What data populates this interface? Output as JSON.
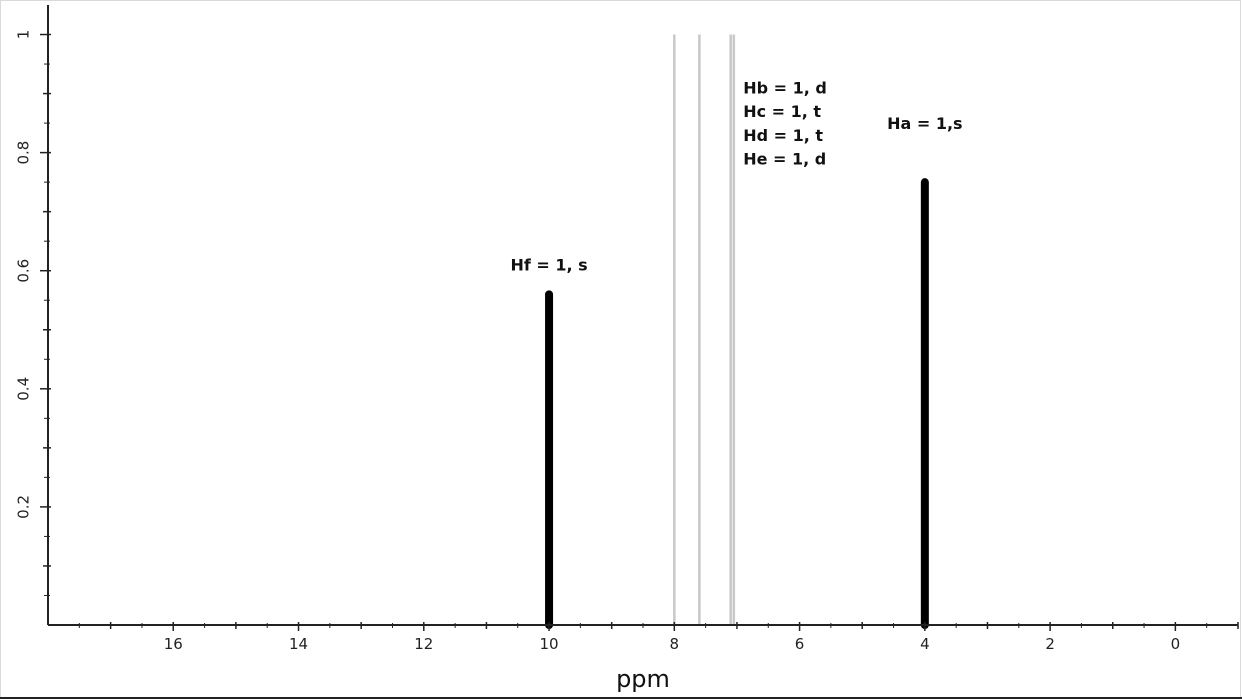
{
  "chart_data": {
    "type": "bar",
    "title": "",
    "xlabel": "ppm",
    "ylabel": "",
    "xlim": [
      18,
      -1
    ],
    "ylim": [
      0,
      1.05
    ],
    "x_reversed": true,
    "grid": false,
    "x_ticks": [
      16,
      14,
      12,
      10,
      8,
      6,
      4,
      2,
      0
    ],
    "y_ticks": [
      0.2,
      0.4,
      0.6,
      0.8,
      1
    ],
    "series": [
      {
        "color": "#000000",
        "points": [
          {
            "x": 10.0,
            "y": 0.56
          },
          {
            "x": 4.0,
            "y": 0.75
          }
        ]
      },
      {
        "color": "#c8c8c8",
        "points": [
          {
            "x": 8.0,
            "y": 1.0
          },
          {
            "x": 7.6,
            "y": 1.0
          },
          {
            "x": 7.1,
            "y": 1.0
          },
          {
            "x": 7.05,
            "y": 1.0
          }
        ]
      }
    ],
    "annotations": [
      {
        "text": "Hf = 1, s",
        "x": 10.0,
        "y": 0.6
      },
      {
        "text": "Hb = 1, d",
        "x": 6.9,
        "y": 0.9
      },
      {
        "text": "Hc = 1, t",
        "x": 6.9,
        "y": 0.86
      },
      {
        "text": "Hd = 1, t",
        "x": 6.9,
        "y": 0.82
      },
      {
        "text": "He = 1, d",
        "x": 6.9,
        "y": 0.78
      },
      {
        "text": "Ha = 1,s",
        "x": 4.0,
        "y": 0.84
      }
    ]
  }
}
